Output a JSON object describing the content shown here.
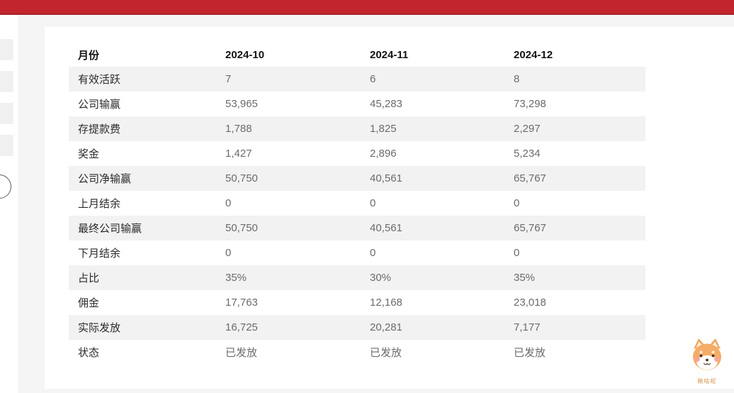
{
  "topbar": {
    "color": "#c2262d",
    "border_color": "#a5232a"
  },
  "sidebar": {
    "skeleton_items": [
      "",
      "",
      "",
      ""
    ],
    "collapse_handle": "half-circle toggle at left edge"
  },
  "table": {
    "header": {
      "label": "月份",
      "columns": [
        "2024-10",
        "2024-11",
        "2024-12"
      ]
    },
    "rows": [
      {
        "label": "有效活跃",
        "values": [
          "7",
          "6",
          "8"
        ]
      },
      {
        "label": "公司输赢",
        "values": [
          "53,965",
          "45,283",
          "73,298"
        ]
      },
      {
        "label": "存提款费",
        "values": [
          "1,788",
          "1,825",
          "2,297"
        ]
      },
      {
        "label": "奖金",
        "values": [
          "1,427",
          "2,896",
          "5,234"
        ]
      },
      {
        "label": "公司净输赢",
        "values": [
          "50,750",
          "40,561",
          "65,767"
        ]
      },
      {
        "label": "上月结余",
        "values": [
          "0",
          "0",
          "0"
        ]
      },
      {
        "label": "最终公司输赢",
        "values": [
          "50,750",
          "40,561",
          "65,767"
        ]
      },
      {
        "label": "下月结余",
        "values": [
          "0",
          "0",
          "0"
        ]
      },
      {
        "label": "占比",
        "values": [
          "35%",
          "30%",
          "35%"
        ]
      },
      {
        "label": "佣金",
        "values": [
          "17,763",
          "12,168",
          "23,018"
        ]
      },
      {
        "label": "实际发放",
        "values": [
          "16,725",
          "20,281",
          "7,177"
        ]
      },
      {
        "label": "状态",
        "values": [
          "已发放",
          "已发放",
          "已发放"
        ]
      }
    ],
    "stripe_color": "#f2f2f2"
  },
  "mascot": {
    "icon": "shiba-dog-icon",
    "caption": "瞅啥呢"
  }
}
